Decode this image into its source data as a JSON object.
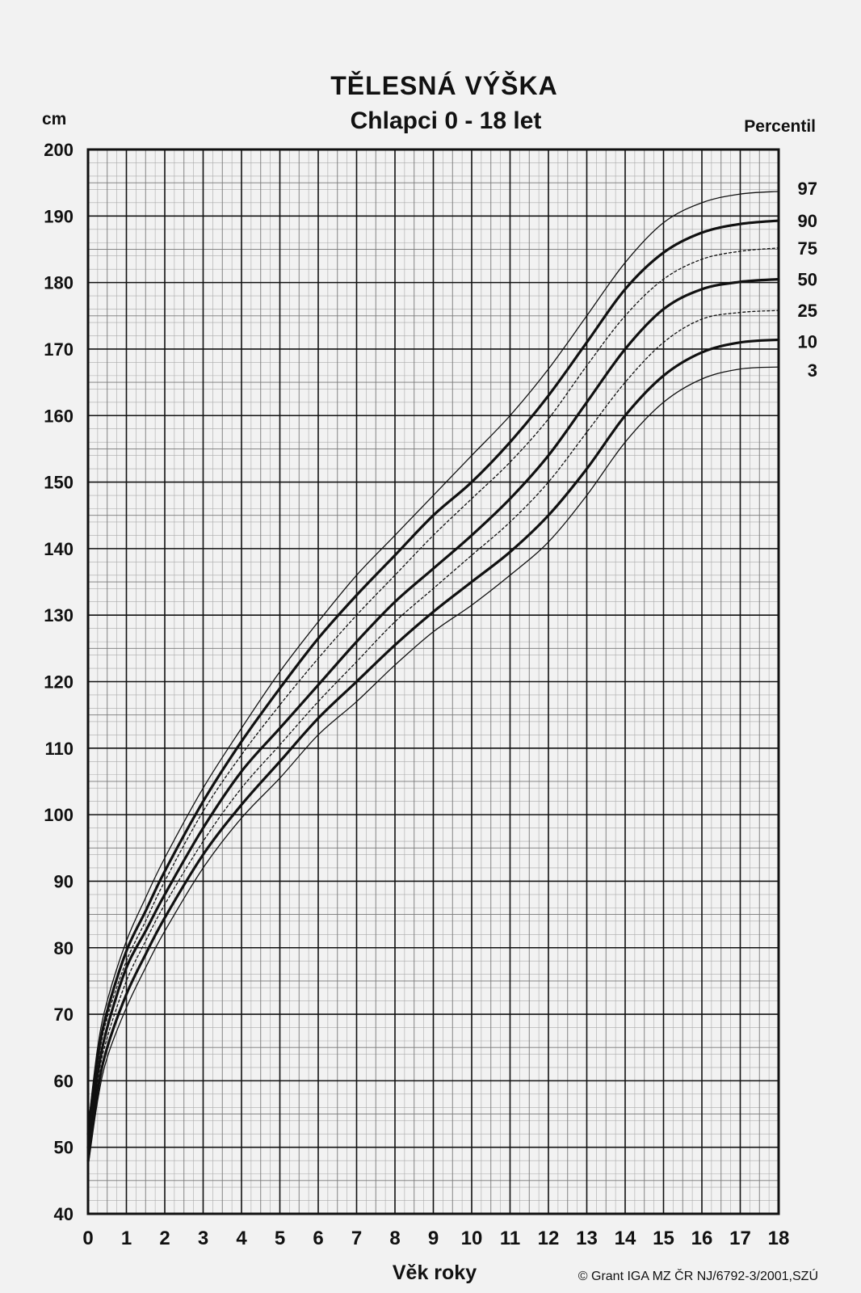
{
  "chart_data": {
    "type": "line",
    "title": "TĚLESNÁ VÝŠKA",
    "subtitle": "Chlapci 0 - 18 let",
    "ylabel": "cm",
    "xlabel": "Věk roky",
    "legend_title": "Percentil",
    "copyright": "© Grant IGA  MZ  ČR NJ/6792-3/2001,SZÚ",
    "xlim": [
      0,
      18
    ],
    "ylim": [
      40,
      200
    ],
    "x_ticks": [
      "0",
      "1",
      "2",
      "3",
      "4",
      "5",
      "6",
      "7",
      "8",
      "9",
      "10",
      "11",
      "12",
      "13",
      "14",
      "15",
      "16",
      "17",
      "18"
    ],
    "y_ticks": [
      "40",
      "50",
      "60",
      "70",
      "80",
      "90",
      "100",
      "110",
      "120",
      "130",
      "140",
      "150",
      "160",
      "170",
      "180",
      "190",
      "200"
    ],
    "grid": true,
    "legend_position": "right",
    "x": [
      0,
      0.25,
      0.5,
      1,
      1.5,
      2,
      3,
      4,
      5,
      6,
      7,
      8,
      9,
      10,
      11,
      12,
      13,
      14,
      15,
      16,
      17,
      18
    ],
    "series": [
      {
        "name": "97",
        "style": "thin",
        "values": [
          53,
          65,
          72,
          81,
          87.5,
          93.5,
          104,
          113,
          121.5,
          129,
          136,
          142,
          148,
          154,
          160,
          167,
          175,
          183,
          189,
          192,
          193.3,
          193.7
        ]
      },
      {
        "name": "90",
        "style": "bold",
        "values": [
          52,
          63.5,
          70.5,
          79.5,
          85.5,
          91.5,
          102,
          111,
          119,
          126.5,
          133,
          139,
          145,
          150,
          156,
          163,
          171,
          179,
          184.5,
          187.5,
          188.8,
          189.3
        ]
      },
      {
        "name": "75",
        "style": "dashed",
        "values": [
          51,
          62.5,
          69.5,
          78,
          84,
          90,
          100.5,
          109,
          116.5,
          123.5,
          130,
          136,
          142,
          147.5,
          153,
          159.5,
          167.5,
          175,
          180.5,
          183.5,
          184.7,
          185.2
        ]
      },
      {
        "name": "50",
        "style": "bold",
        "values": [
          50,
          61,
          68,
          77,
          82.5,
          88,
          98,
          106.5,
          113,
          119.5,
          126,
          132,
          137,
          142,
          147.5,
          154,
          162,
          170,
          176,
          179,
          180.1,
          180.5
        ]
      },
      {
        "name": "25",
        "style": "dashed",
        "values": [
          49,
          60,
          66.5,
          75,
          81,
          86.5,
          96,
          104,
          110.5,
          117,
          123,
          129,
          134,
          139,
          144,
          150,
          157.5,
          165,
          171,
          174.5,
          175.5,
          175.8
        ]
      },
      {
        "name": "10",
        "style": "bold",
        "values": [
          48,
          58.5,
          65,
          73,
          79,
          84.5,
          94,
          101.5,
          108,
          114.5,
          120,
          125.5,
          130.5,
          135,
          139.5,
          145,
          152,
          160,
          166,
          169.5,
          171,
          171.4
        ]
      },
      {
        "name": "3",
        "style": "thin",
        "values": [
          47,
          57,
          63.5,
          71,
          77,
          82.5,
          92,
          99.5,
          105.5,
          112,
          117,
          122.5,
          127.5,
          131.5,
          136,
          141,
          148,
          156,
          162,
          165.5,
          167,
          167.3
        ]
      }
    ]
  }
}
